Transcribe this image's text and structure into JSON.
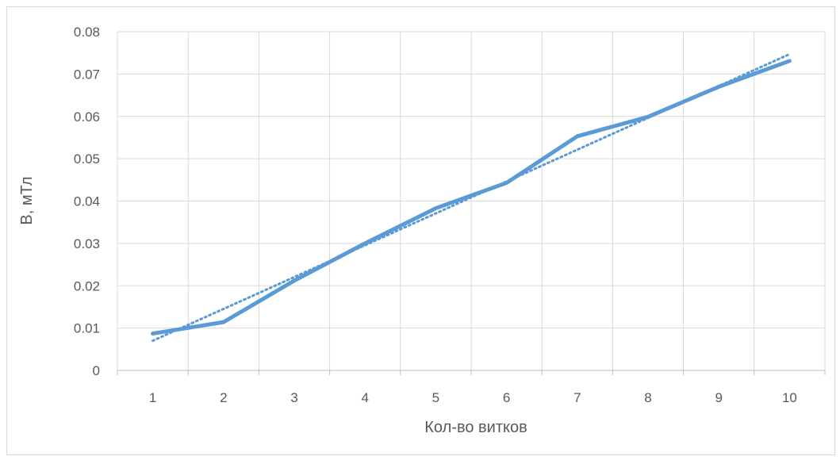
{
  "chart_data": {
    "type": "line",
    "title": "",
    "xlabel": "Кол-во витков",
    "ylabel": "B, мТл",
    "categories": [
      "1",
      "2",
      "3",
      "4",
      "5",
      "6",
      "7",
      "8",
      "9",
      "10"
    ],
    "x": [
      1,
      2,
      3,
      4,
      5,
      6,
      7,
      8,
      9,
      10
    ],
    "series": [
      {
        "values": [
          0.0087,
          0.0114,
          0.0212,
          0.03,
          0.0383,
          0.0443,
          0.0553,
          0.0599,
          0.067,
          0.0731
        ],
        "color": "#5b9bd5",
        "style": "solid"
      }
    ],
    "trendline": {
      "type": "linear",
      "color": "#5b9bd5",
      "style": "dotted",
      "start": [
        1,
        0.007
      ],
      "end": [
        10,
        0.0747
      ]
    },
    "ylim": [
      0,
      0.08
    ],
    "yticks": [
      "0",
      "0.01",
      "0.02",
      "0.03",
      "0.04",
      "0.05",
      "0.06",
      "0.07",
      "0.08"
    ],
    "grid": true,
    "legend": "none",
    "gridline_color": "#d9d9d9",
    "axis_color": "#bfbfbf",
    "text_color": "#595959"
  }
}
